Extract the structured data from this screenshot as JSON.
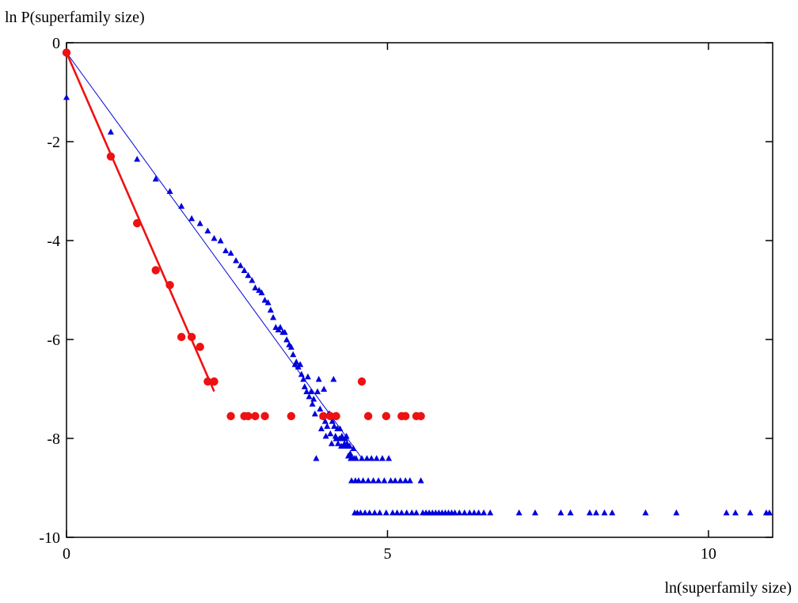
{
  "chart_data": {
    "type": "scatter",
    "title": "",
    "ylabel": "ln P(superfamily size)",
    "xlabel": "ln(superfamily size)",
    "xlim": [
      0,
      11
    ],
    "ylim": [
      -10,
      0
    ],
    "x_ticks": [
      0,
      5,
      10
    ],
    "y_ticks": [
      0,
      -2,
      -4,
      -6,
      -8,
      -10
    ],
    "x_tick_labels": [
      "0",
      "5",
      "10"
    ],
    "y_tick_labels": [
      "0",
      "-2",
      "-4",
      "-6",
      "-8",
      "-10"
    ],
    "grid": false,
    "legend": "none",
    "series": [
      {
        "marker": "triangle",
        "color": "#0000dd",
        "points": [
          [
            0,
            -1.1
          ],
          [
            0.69,
            -1.8
          ],
          [
            1.1,
            -2.35
          ],
          [
            1.39,
            -2.75
          ],
          [
            1.61,
            -3.0
          ],
          [
            1.79,
            -3.3
          ],
          [
            1.95,
            -3.55
          ],
          [
            2.08,
            -3.65
          ],
          [
            2.2,
            -3.8
          ],
          [
            2.3,
            -3.95
          ],
          [
            2.4,
            -4.0
          ],
          [
            2.48,
            -4.2
          ],
          [
            2.56,
            -4.25
          ],
          [
            2.64,
            -4.4
          ],
          [
            2.71,
            -4.5
          ],
          [
            2.77,
            -4.6
          ],
          [
            2.83,
            -4.7
          ],
          [
            2.89,
            -4.8
          ],
          [
            2.94,
            -4.95
          ],
          [
            3.0,
            -5.0
          ],
          [
            3.04,
            -5.05
          ],
          [
            3.09,
            -5.2
          ],
          [
            3.14,
            -5.25
          ],
          [
            3.18,
            -5.4
          ],
          [
            3.22,
            -5.55
          ],
          [
            3.26,
            -5.75
          ],
          [
            3.3,
            -5.8
          ],
          [
            3.33,
            -5.75
          ],
          [
            3.37,
            -5.85
          ],
          [
            3.4,
            -5.85
          ],
          [
            3.43,
            -6.0
          ],
          [
            3.47,
            -6.1
          ],
          [
            3.5,
            -6.15
          ],
          [
            3.53,
            -6.3
          ],
          [
            3.56,
            -6.5
          ],
          [
            3.58,
            -6.45
          ],
          [
            3.61,
            -6.55
          ],
          [
            3.64,
            -6.5
          ],
          [
            3.66,
            -6.7
          ],
          [
            3.69,
            -6.8
          ],
          [
            3.71,
            -6.95
          ],
          [
            3.74,
            -7.05
          ],
          [
            3.76,
            -6.75
          ],
          [
            3.78,
            -7.15
          ],
          [
            3.81,
            -7.05
          ],
          [
            3.83,
            -7.3
          ],
          [
            3.85,
            -7.2
          ],
          [
            3.87,
            -7.5
          ],
          [
            3.89,
            -8.4
          ],
          [
            3.91,
            -7.05
          ],
          [
            3.93,
            -6.8
          ],
          [
            3.95,
            -7.4
          ],
          [
            3.97,
            -7.8
          ],
          [
            3.99,
            -7.55
          ],
          [
            4.01,
            -7.0
          ],
          [
            4.03,
            -7.65
          ],
          [
            4.04,
            -7.95
          ],
          [
            4.06,
            -7.75
          ],
          [
            4.08,
            -7.5
          ],
          [
            4.1,
            -7.5
          ],
          [
            4.11,
            -7.9
          ],
          [
            4.13,
            -8.1
          ],
          [
            4.14,
            -7.65
          ],
          [
            4.16,
            -6.8
          ],
          [
            4.17,
            -7.75
          ],
          [
            4.19,
            -7.95
          ],
          [
            4.2,
            -8.0
          ],
          [
            4.22,
            -7.8
          ],
          [
            4.23,
            -8.1
          ],
          [
            4.25,
            -8.0
          ],
          [
            4.26,
            -7.8
          ],
          [
            4.28,
            -8.15
          ],
          [
            4.29,
            -7.95
          ],
          [
            4.3,
            -8.0
          ],
          [
            4.32,
            -8.15
          ],
          [
            4.33,
            -8.1
          ],
          [
            4.34,
            -8.0
          ],
          [
            4.36,
            -7.95
          ],
          [
            4.37,
            -8.1
          ],
          [
            4.38,
            -8.15
          ],
          [
            4.39,
            -8.35
          ],
          [
            4.41,
            -8.15
          ],
          [
            4.42,
            -8.3
          ],
          [
            4.43,
            -8.4
          ],
          [
            4.44,
            -8.85
          ],
          [
            4.45,
            -8.4
          ],
          [
            4.47,
            -8.2
          ],
          [
            4.48,
            -8.4
          ],
          [
            4.49,
            -9.5
          ],
          [
            4.5,
            -8.85
          ],
          [
            4.51,
            -8.4
          ],
          [
            4.53,
            -9.5
          ],
          [
            4.55,
            -8.85
          ],
          [
            4.58,
            -9.5
          ],
          [
            4.6,
            -8.4
          ],
          [
            4.62,
            -8.85
          ],
          [
            4.65,
            -9.5
          ],
          [
            4.68,
            -8.4
          ],
          [
            4.7,
            -8.85
          ],
          [
            4.72,
            -9.5
          ],
          [
            4.75,
            -8.4
          ],
          [
            4.78,
            -8.85
          ],
          [
            4.8,
            -9.5
          ],
          [
            4.83,
            -8.4
          ],
          [
            4.86,
            -8.85
          ],
          [
            4.88,
            -9.5
          ],
          [
            4.92,
            -8.4
          ],
          [
            4.95,
            -8.85
          ],
          [
            4.98,
            -9.5
          ],
          [
            5.02,
            -8.4
          ],
          [
            5.05,
            -8.85
          ],
          [
            5.08,
            -9.5
          ],
          [
            5.12,
            -8.85
          ],
          [
            5.15,
            -9.5
          ],
          [
            5.2,
            -8.85
          ],
          [
            5.22,
            -9.5
          ],
          [
            5.28,
            -8.85
          ],
          [
            5.3,
            -9.5
          ],
          [
            5.35,
            -8.85
          ],
          [
            5.38,
            -9.5
          ],
          [
            5.45,
            -9.5
          ],
          [
            5.52,
            -8.85
          ],
          [
            5.55,
            -9.5
          ],
          [
            5.6,
            -9.5
          ],
          [
            5.65,
            -9.5
          ],
          [
            5.7,
            -9.5
          ],
          [
            5.75,
            -9.5
          ],
          [
            5.8,
            -9.5
          ],
          [
            5.85,
            -9.5
          ],
          [
            5.9,
            -9.5
          ],
          [
            5.95,
            -9.5
          ],
          [
            6.0,
            -9.5
          ],
          [
            6.05,
            -9.5
          ],
          [
            6.12,
            -9.5
          ],
          [
            6.2,
            -9.5
          ],
          [
            6.28,
            -9.5
          ],
          [
            6.35,
            -9.5
          ],
          [
            6.42,
            -9.5
          ],
          [
            6.5,
            -9.5
          ],
          [
            6.6,
            -9.5
          ],
          [
            7.05,
            -9.5
          ],
          [
            7.3,
            -9.5
          ],
          [
            7.7,
            -9.5
          ],
          [
            7.85,
            -9.5
          ],
          [
            8.15,
            -9.5
          ],
          [
            8.25,
            -9.5
          ],
          [
            8.38,
            -9.5
          ],
          [
            8.5,
            -9.5
          ],
          [
            9.02,
            -9.5
          ],
          [
            9.5,
            -9.5
          ],
          [
            10.28,
            -9.5
          ],
          [
            10.42,
            -9.5
          ],
          [
            10.65,
            -9.5
          ],
          [
            10.9,
            -9.5
          ],
          [
            10.95,
            -9.5
          ]
        ]
      },
      {
        "marker": "circle",
        "color": "#ee1111",
        "points": [
          [
            0,
            -0.2
          ],
          [
            0.69,
            -2.3
          ],
          [
            1.1,
            -3.65
          ],
          [
            1.39,
            -4.6
          ],
          [
            1.61,
            -4.9
          ],
          [
            1.79,
            -5.95
          ],
          [
            1.95,
            -5.95
          ],
          [
            2.08,
            -6.15
          ],
          [
            2.2,
            -6.85
          ],
          [
            2.3,
            -6.85
          ],
          [
            2.56,
            -7.55
          ],
          [
            2.77,
            -7.55
          ],
          [
            2.83,
            -7.55
          ],
          [
            2.94,
            -7.55
          ],
          [
            3.09,
            -7.55
          ],
          [
            3.5,
            -7.55
          ],
          [
            4.0,
            -7.55
          ],
          [
            4.11,
            -7.55
          ],
          [
            4.2,
            -7.55
          ],
          [
            4.6,
            -6.85
          ],
          [
            4.7,
            -7.55
          ],
          [
            4.98,
            -7.55
          ],
          [
            5.22,
            -7.55
          ],
          [
            5.28,
            -7.55
          ],
          [
            5.45,
            -7.55
          ],
          [
            5.52,
            -7.55
          ]
        ]
      }
    ],
    "fit_lines": [
      {
        "color": "#0000dd",
        "width": 1,
        "from": [
          0,
          -0.2
        ],
        "to": [
          4.6,
          -8.4
        ]
      },
      {
        "color": "#ee1111",
        "width": 2.6,
        "from": [
          0,
          -0.2
        ],
        "to": [
          2.3,
          -7.05
        ]
      }
    ]
  }
}
